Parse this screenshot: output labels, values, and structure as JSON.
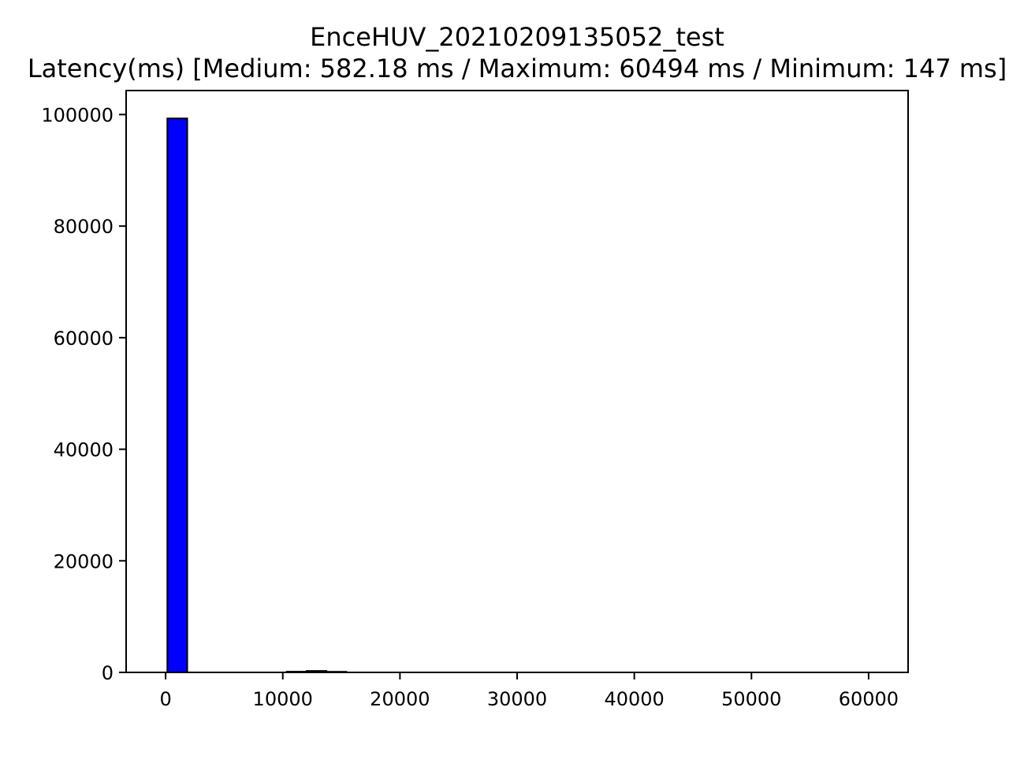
{
  "chart_data": {
    "type": "bar",
    "title": "EnceHUV_20210209135052_test",
    "subtitle": "Latency(ms) [Medium: 582.18 ms / Maximum: 60494 ms / Minimum: 147 ms]",
    "xlabel": "",
    "ylabel": "",
    "xlim": [
      -3370,
      63370
    ],
    "ylim": [
      0,
      104300
    ],
    "x_ticks": [
      0,
      10000,
      20000,
      30000,
      40000,
      50000,
      60000
    ],
    "x_tick_labels": [
      "0",
      "10000",
      "20000",
      "30000",
      "40000",
      "50000",
      "60000"
    ],
    "y_ticks": [
      0,
      20000,
      40000,
      60000,
      80000,
      100000
    ],
    "y_tick_labels": [
      "0",
      "20000",
      "40000",
      "60000",
      "80000",
      "100000"
    ],
    "bar_color": "#0000ff",
    "edge_color": "#000000",
    "grid": false,
    "legend": "none",
    "bins": [
      {
        "start": 147,
        "end": 1845,
        "count": 99300
      },
      {
        "start": 10334,
        "end": 12032,
        "count": 130
      },
      {
        "start": 12032,
        "end": 13730,
        "count": 260
      },
      {
        "start": 13730,
        "end": 15428,
        "count": 110
      }
    ]
  }
}
